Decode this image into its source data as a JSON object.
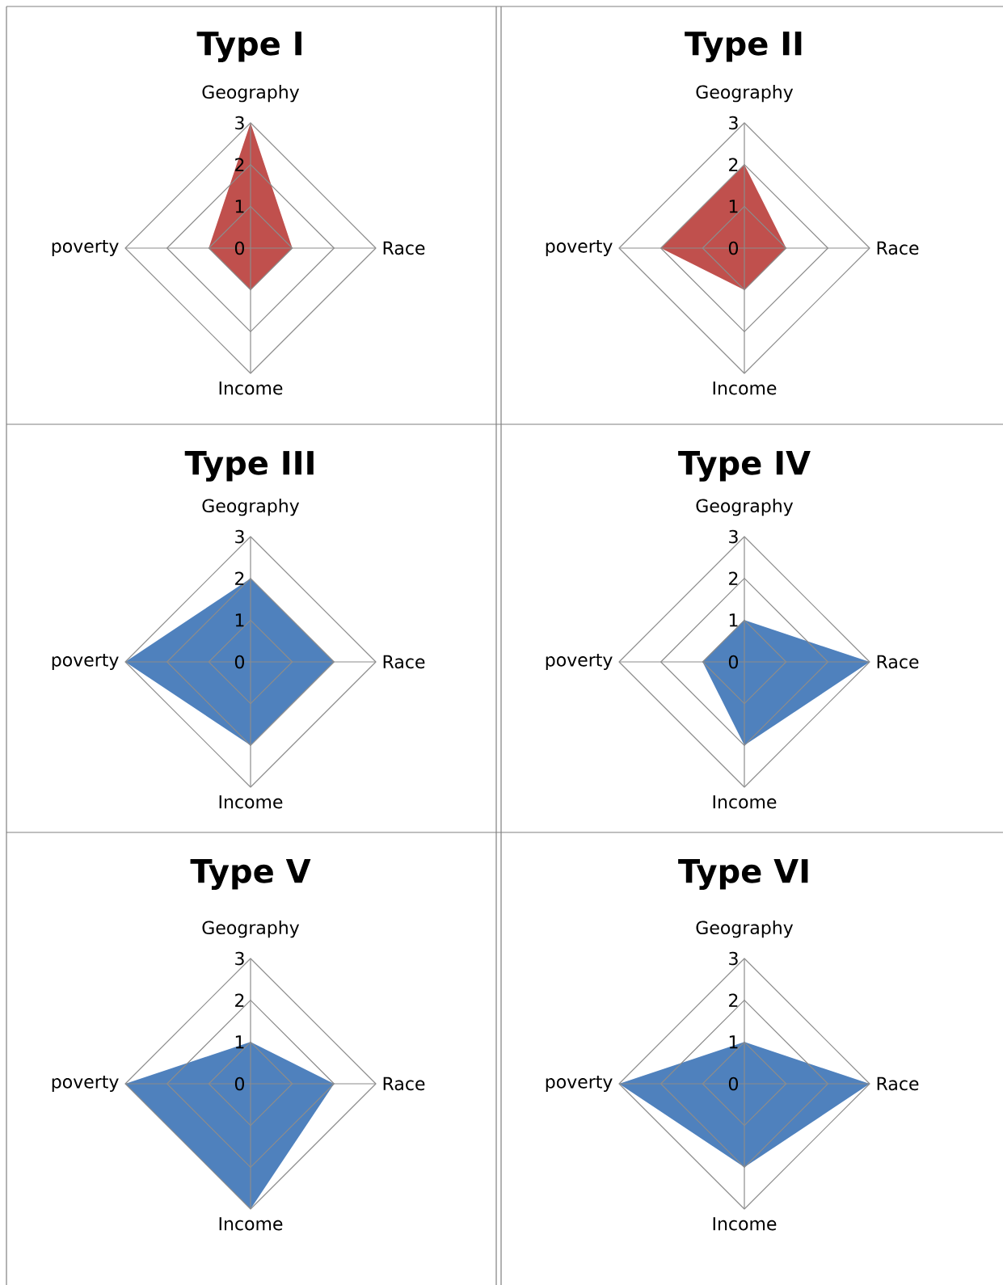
{
  "chart_data": [
    {
      "type": "radar",
      "title": "Type I",
      "categories": [
        "Geography",
        "Race",
        "Income",
        "poverty"
      ],
      "series": [
        {
          "color": "#c0504d",
          "values": [
            3,
            1,
            1,
            1
          ]
        }
      ],
      "ylim": [
        0,
        3
      ],
      "yticks": [
        0,
        1,
        2,
        3
      ],
      "grid": true
    },
    {
      "type": "radar",
      "title": "Type II",
      "categories": [
        "Geography",
        "Race",
        "Income",
        "poverty"
      ],
      "series": [
        {
          "color": "#c0504d",
          "values": [
            2,
            1,
            1,
            2
          ]
        }
      ],
      "ylim": [
        0,
        3
      ],
      "yticks": [
        0,
        1,
        2,
        3
      ],
      "grid": true
    },
    {
      "type": "radar",
      "title": "Type III",
      "categories": [
        "Geography",
        "Race",
        "Income",
        "poverty"
      ],
      "series": [
        {
          "color": "#4f81bd",
          "values": [
            2,
            2,
            2,
            3
          ]
        }
      ],
      "ylim": [
        0,
        3
      ],
      "yticks": [
        0,
        1,
        2,
        3
      ],
      "grid": true
    },
    {
      "type": "radar",
      "title": "Type IV",
      "categories": [
        "Geography",
        "Race",
        "Income",
        "poverty"
      ],
      "series": [
        {
          "color": "#4f81bd",
          "values": [
            1,
            3,
            2,
            1
          ]
        }
      ],
      "ylim": [
        0,
        3
      ],
      "yticks": [
        0,
        1,
        2,
        3
      ],
      "grid": true
    },
    {
      "type": "radar",
      "title": "Type V",
      "categories": [
        "Geography",
        "Race",
        "Income",
        "poverty"
      ],
      "series": [
        {
          "color": "#4f81bd",
          "values": [
            1,
            2,
            3,
            3
          ]
        }
      ],
      "ylim": [
        0,
        3
      ],
      "yticks": [
        0,
        1,
        2,
        3
      ],
      "grid": true
    },
    {
      "type": "radar",
      "title": "Type VI",
      "categories": [
        "Geography",
        "Race",
        "Income",
        "poverty"
      ],
      "series": [
        {
          "color": "#4f81bd",
          "values": [
            1,
            3,
            2,
            3
          ]
        }
      ],
      "ylim": [
        0,
        3
      ],
      "yticks": [
        0,
        1,
        2,
        3
      ],
      "grid": true
    }
  ]
}
